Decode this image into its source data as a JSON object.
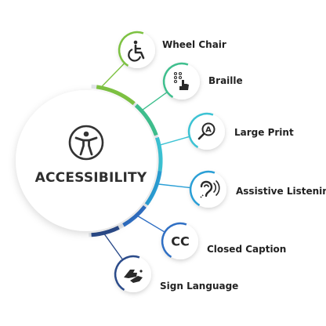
{
  "center": {
    "title": "ACCESSIBILITY",
    "icon": "universal-access-icon",
    "color": "#333333"
  },
  "items": [
    {
      "label": "Wheel Chair",
      "icon": "wheelchair-icon",
      "color": "#7dc242"
    },
    {
      "label": "Braille",
      "icon": "braille-hand-icon",
      "color": "#3fbf8e"
    },
    {
      "label": "Large Print",
      "icon": "magnifier-letter-icon",
      "color": "#3cc3d4"
    },
    {
      "label": "Assistive Listening",
      "icon": "ear-listening-icon",
      "color": "#2a9fd6"
    },
    {
      "label": "Closed Caption",
      "icon": "closed-caption-icon",
      "color": "#2f6fc4"
    },
    {
      "label": "Sign Language",
      "icon": "sign-language-hands-icon",
      "color": "#2b4b8a"
    }
  ]
}
